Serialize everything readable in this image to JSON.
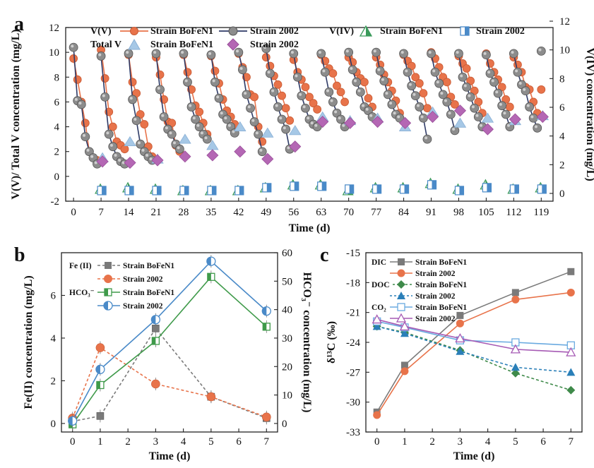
{
  "panel_labels": {
    "a": "a",
    "b": "b",
    "c": "c"
  },
  "legend_a": {
    "vv_label": "V(V)",
    "totalv_label": "Total V",
    "viv_label": "V(IV)",
    "s1": "Strain BoFeN1",
    "s2": "Strain 2002"
  },
  "legend_b": {
    "fe_label": "Fe (II)",
    "hco_label": "HCO₃⁻",
    "s1": "Strain BoFeN1",
    "s2": "Strain 2002"
  },
  "legend_c": {
    "dic_label": "DIC",
    "doc_label": "DOC",
    "co2_label": "CO₂",
    "s1": "Strain BoFeN1",
    "s2": "Strain 2002"
  },
  "colors": {
    "bofen": "#e8734a",
    "strain2002": "#808080",
    "navy": "#2e3a66",
    "totalv1": "#a6c8e6",
    "totalv2": "#b467b4",
    "viv1": "#3a9a5a",
    "viv2": "#4a8ac8",
    "fe1": "#7a7a7a",
    "fe2": "#e8734a",
    "hco1": "#3f9a4a",
    "hco2": "#4a8ac8",
    "dic1": "#7a7a7a",
    "dic2": "#e8734a",
    "doc1": "#3f8a4a",
    "doc2": "#2a7fb8",
    "co21": "#6aaae0",
    "co22": "#a65ab4"
  },
  "chart_data": [
    {
      "panel": "a",
      "type": "line",
      "xlabel": "Time (d)",
      "ylabel": "V(V)/ Total V concentration (mg/L)",
      "y2label": "V(IV) concentration (mg/L)",
      "xlim": [
        -2,
        122
      ],
      "ylim": [
        -2,
        12
      ],
      "y2lim": [
        0,
        12
      ],
      "xticks": [
        0,
        7,
        14,
        21,
        28,
        35,
        42,
        49,
        56,
        63,
        70,
        77,
        84,
        91,
        98,
        105,
        112,
        119
      ],
      "yticks": [
        -2,
        0,
        2,
        4,
        6,
        8,
        10,
        12
      ],
      "y2ticks": [
        0,
        2,
        4,
        6,
        8,
        10,
        12
      ],
      "series": [
        {
          "name": "V(V) Strain BoFeN1",
          "x": [
            0,
            1,
            2,
            3,
            4,
            5,
            6,
            7,
            8,
            9,
            10,
            11,
            12,
            13,
            14,
            15,
            16,
            17,
            18,
            19,
            20,
            21,
            22,
            23,
            24,
            25,
            26,
            27,
            28,
            29,
            30,
            31,
            32,
            33,
            34,
            35,
            36,
            37,
            38,
            39,
            40,
            41,
            42,
            43,
            44,
            45,
            46,
            47,
            48,
            49,
            50,
            51,
            52,
            53,
            54,
            55,
            56,
            57,
            58,
            59,
            60,
            61,
            62,
            63,
            64,
            65,
            66,
            67,
            68,
            69,
            70,
            71,
            72,
            73,
            74,
            75,
            76,
            77,
            78,
            79,
            80,
            81,
            82,
            83,
            84,
            85,
            86,
            87,
            88,
            89,
            90,
            91,
            92,
            93,
            94,
            95,
            96,
            97,
            98,
            99,
            100,
            101,
            102,
            103,
            104,
            105,
            106,
            107,
            108,
            109,
            110,
            111,
            112,
            113,
            114,
            115,
            116,
            117,
            118,
            119
          ],
          "values": [
            9.5,
            7.8,
            6.0,
            4.3,
            2.0,
            1.5,
            1.3,
            10.2,
            7.9,
            5.2,
            4.0,
            2.8,
            2.5,
            2.2,
            9.8,
            7.6,
            6.7,
            5.0,
            4.2,
            2.4,
            1.6,
            9.6,
            8.2,
            6.2,
            4.4,
            4.3,
            2.5,
            2.0,
            9.8,
            8.4,
            7.0,
            5.7,
            5.2,
            4.3,
            3.4,
            9.7,
            8.5,
            7.5,
            6.2,
            5.3,
            4.8,
            4.2,
            9.9,
            8.8,
            8.0,
            6.6,
            6.4,
            4.0,
            2.8,
            9.6,
            8.9,
            8.1,
            7.4,
            6.5,
            5.5,
            4.5,
            9.4,
            8.4,
            7.8,
            7.2,
            6.4,
            5.9,
            5.4,
            9.8,
            9.3,
            8.7,
            8.3,
            7.3,
            6.8,
            6.0,
            9.6,
            9.2,
            8.4,
            7.9,
            7.6,
            6.3,
            5.6,
            9.6,
            9.0,
            8.2,
            7.6,
            6.9,
            6.1,
            5.1,
            9.8,
            9.3,
            8.9,
            8.0,
            7.5,
            6.7,
            5.5,
            10.0,
            9.5,
            8.8,
            8.0,
            7.6,
            6.4,
            5.8,
            9.7,
            9.1,
            8.7,
            7.7,
            6.9,
            6.0,
            5.1,
            9.9,
            9.1,
            8.4,
            7.8,
            7.2,
            6.2,
            5.6,
            9.6,
            9.0,
            8.4,
            7.2,
            7.0,
            6.0,
            5.1,
            7.0
          ]
        },
        {
          "name": "V(V) Strain 2002",
          "x": [
            0,
            1,
            2,
            3,
            4,
            5,
            6,
            7,
            8,
            9,
            10,
            11,
            12,
            13,
            14,
            15,
            16,
            17,
            18,
            19,
            20,
            21,
            22,
            23,
            24,
            25,
            26,
            27,
            28,
            29,
            30,
            31,
            32,
            33,
            34,
            35,
            36,
            37,
            38,
            39,
            40,
            41,
            42,
            43,
            44,
            45,
            46,
            47,
            48,
            49,
            50,
            51,
            52,
            53,
            54,
            55,
            56,
            57,
            58,
            59,
            60,
            61,
            62,
            63,
            64,
            65,
            66,
            67,
            68,
            69,
            70,
            71,
            72,
            73,
            74,
            75,
            76,
            77,
            78,
            79,
            80,
            81,
            82,
            83,
            84,
            85,
            86,
            87,
            88,
            89,
            90,
            91,
            92,
            93,
            94,
            95,
            96,
            97,
            98,
            99,
            100,
            101,
            102,
            103,
            104,
            105,
            106,
            107,
            108,
            109,
            110,
            111,
            112,
            113,
            114,
            115,
            116,
            117,
            118,
            119
          ],
          "values": [
            10.4,
            6.1,
            5.8,
            3.2,
            2.0,
            1.5,
            1.0,
            9.7,
            6.4,
            3.4,
            2.4,
            1.6,
            1.2,
            1.0,
            9.9,
            6.2,
            4.5,
            2.6,
            2.0,
            1.6,
            1.3,
            9.9,
            7.0,
            4.8,
            3.8,
            3.4,
            2.6,
            2.2,
            9.9,
            7.6,
            5.6,
            4.6,
            4.0,
            3.4,
            3.0,
            9.8,
            7.6,
            6.3,
            5.0,
            4.6,
            4.0,
            3.5,
            10.0,
            8.6,
            6.6,
            5.5,
            4.4,
            3.4,
            2.0,
            10.3,
            8.3,
            6.8,
            5.6,
            4.6,
            3.8,
            2.2,
            9.9,
            8.0,
            6.5,
            5.5,
            4.6,
            4.2,
            4.0,
            9.9,
            8.4,
            6.8,
            6.0,
            5.1,
            4.6,
            4.0,
            10.0,
            8.6,
            7.6,
            6.8,
            5.6,
            5.3,
            4.8,
            10.0,
            8.5,
            7.7,
            6.6,
            5.8,
            5.0,
            4.7,
            9.9,
            8.4,
            7.3,
            6.5,
            5.6,
            4.7,
            3.0,
            9.9,
            8.4,
            7.5,
            6.6,
            6.0,
            5.0,
            3.7,
            9.9,
            8.0,
            7.2,
            6.4,
            5.5,
            4.8,
            4.0,
            9.8,
            8.3,
            7.6,
            6.7,
            5.7,
            5.0,
            4.0,
            9.9,
            8.4,
            7.4,
            6.9,
            5.6,
            4.7,
            3.9,
            10.1
          ]
        },
        {
          "name": "Total V Strain BoFeN1",
          "x": [
            7,
            14,
            21,
            28,
            35,
            42,
            49,
            56,
            63,
            70,
            77,
            84,
            91,
            98,
            105,
            112,
            119
          ],
          "values": [
            1.5,
            2.8,
            1.4,
            3.0,
            2.5,
            4.0,
            3.5,
            3.7,
            4.8,
            4.5,
            4.7,
            4.0,
            5.2,
            4.3,
            4.7,
            4.5,
            4.9
          ]
        },
        {
          "name": "Total V Strain 2002",
          "x": [
            7,
            14,
            21,
            28,
            35,
            42,
            49,
            56,
            63,
            70,
            77,
            84,
            91,
            98,
            105,
            112,
            119
          ],
          "values": [
            1.2,
            1.1,
            1.3,
            1.6,
            1.7,
            2.0,
            1.4,
            2.4,
            4.4,
            4.3,
            4.4,
            4.3,
            4.8,
            5.3,
            3.8,
            4.6,
            4.8
          ]
        },
        {
          "name": "V(IV) Strain BoFeN1",
          "x": [
            7,
            14,
            21,
            28,
            35,
            42,
            49,
            56,
            63,
            70,
            77,
            84,
            91,
            98,
            105,
            112,
            119
          ],
          "values": [
            0.3,
            0.4,
            0.3,
            0.2,
            0.2,
            0.2,
            0.4,
            0.6,
            0.6,
            0.2,
            0.4,
            0.4,
            0.7,
            0.3,
            0.6,
            0.3,
            0.4
          ]
        },
        {
          "name": "V(IV) Strain 2002",
          "x": [
            7,
            14,
            21,
            28,
            35,
            42,
            49,
            56,
            63,
            70,
            77,
            84,
            91,
            98,
            105,
            112,
            119
          ],
          "values": [
            0.2,
            0.2,
            0.2,
            0.2,
            0.2,
            0.2,
            0.4,
            0.5,
            0.5,
            0.3,
            0.3,
            0.3,
            0.6,
            0.2,
            0.4,
            0.3,
            0.3
          ]
        }
      ]
    },
    {
      "panel": "b",
      "type": "line",
      "xlabel": "Time (d)",
      "ylabel": "Fe(II) concentration (mg/L)",
      "y2label": "HCO₃⁻ concentration (mg/L)",
      "xlim": [
        -0.4,
        7.4
      ],
      "ylim": [
        -0.4,
        8.0
      ],
      "y2lim": [
        -3,
        60
      ],
      "xticks": [
        0,
        1,
        2,
        3,
        4,
        5,
        6,
        7
      ],
      "yticks": [
        0,
        2,
        4,
        6
      ],
      "y2ticks": [
        0,
        10,
        20,
        30,
        40,
        50,
        60
      ],
      "series": [
        {
          "name": "Fe (II) Strain BoFeN1",
          "x": [
            0,
            1,
            3,
            5,
            7
          ],
          "values": [
            0.1,
            0.35,
            4.45,
            1.25,
            0.25
          ]
        },
        {
          "name": "Fe (II) Strain 2002",
          "x": [
            0,
            1,
            3,
            5,
            7
          ],
          "values": [
            0.25,
            3.55,
            1.85,
            1.25,
            0.3
          ]
        },
        {
          "name": "HCO₃⁻ Strain BoFeN1",
          "x": [
            0,
            1,
            3,
            5,
            7
          ],
          "values": [
            -0.3,
            13.5,
            29.0,
            51.5,
            34.0
          ]
        },
        {
          "name": "HCO₃⁻ Strain 2002",
          "x": [
            0,
            1,
            3,
            5,
            7
          ],
          "values": [
            0.9,
            19.0,
            36.5,
            57.0,
            39.5
          ]
        }
      ]
    },
    {
      "panel": "c",
      "type": "line",
      "xlabel": "Time (d)",
      "ylabel": "δ¹³C (‰)",
      "xlim": [
        -0.4,
        7.4
      ],
      "ylim": [
        -33,
        -15
      ],
      "xticks": [
        0,
        1,
        2,
        3,
        4,
        5,
        6,
        7
      ],
      "yticks": [
        -33,
        -30,
        -27,
        -24,
        -21,
        -18,
        -15
      ],
      "series": [
        {
          "name": "DIC Strain BoFeN1",
          "x": [
            0,
            1,
            3,
            5,
            7
          ],
          "values": [
            -31.0,
            -26.3,
            -21.3,
            -19.0,
            -16.9
          ]
        },
        {
          "name": "DIC Strain 2002",
          "x": [
            0,
            1,
            3,
            5,
            7
          ],
          "values": [
            -31.3,
            -26.9,
            -22.1,
            -19.7,
            -19.0
          ]
        },
        {
          "name": "DOC Strain BoFeN1",
          "x": [
            0,
            1,
            3,
            5,
            7
          ],
          "values": [
            -22.4,
            -23.0,
            -24.8,
            -27.1,
            -28.8
          ]
        },
        {
          "name": "DOC Strain 2002",
          "x": [
            0,
            1,
            3,
            5,
            7
          ],
          "values": [
            -22.4,
            -23.1,
            -24.9,
            -26.5,
            -27.0
          ]
        },
        {
          "name": "CO₂ Strain BoFeN1",
          "x": [
            0,
            1,
            3,
            5,
            7
          ],
          "values": [
            -21.9,
            -22.5,
            -23.8,
            -24.0,
            -24.3
          ]
        },
        {
          "name": "CO₂ Strain 2002",
          "x": [
            0,
            1,
            3,
            5,
            7
          ],
          "values": [
            -21.7,
            -22.4,
            -23.6,
            -24.7,
            -25.0
          ]
        }
      ]
    }
  ]
}
